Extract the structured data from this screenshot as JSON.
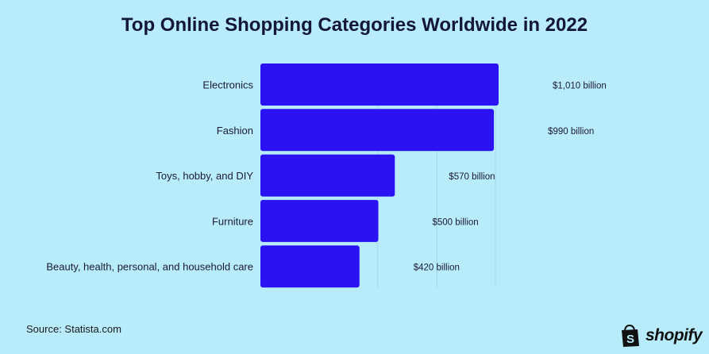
{
  "chart_data": {
    "type": "bar",
    "orientation": "horizontal",
    "title": "Top Online Shopping Categories Worldwide in 2022",
    "categories": [
      "Electronics",
      "Fashion",
      "Toys, hobby, and DIY",
      "Furniture",
      "Beauty, health, personal, and household care"
    ],
    "values": [
      1010,
      990,
      570,
      500,
      420
    ],
    "value_labels": [
      "$1,010 billion",
      "$990 billion",
      "$570 billion",
      "$500 billion",
      "$420 billion"
    ],
    "unit": "billion USD",
    "xlim": [
      0,
      1010
    ],
    "grid": true,
    "bar_color": "#2a12f2"
  },
  "source": "Source: Statista.com",
  "brand": {
    "name": "shopify",
    "color": "#111111"
  }
}
